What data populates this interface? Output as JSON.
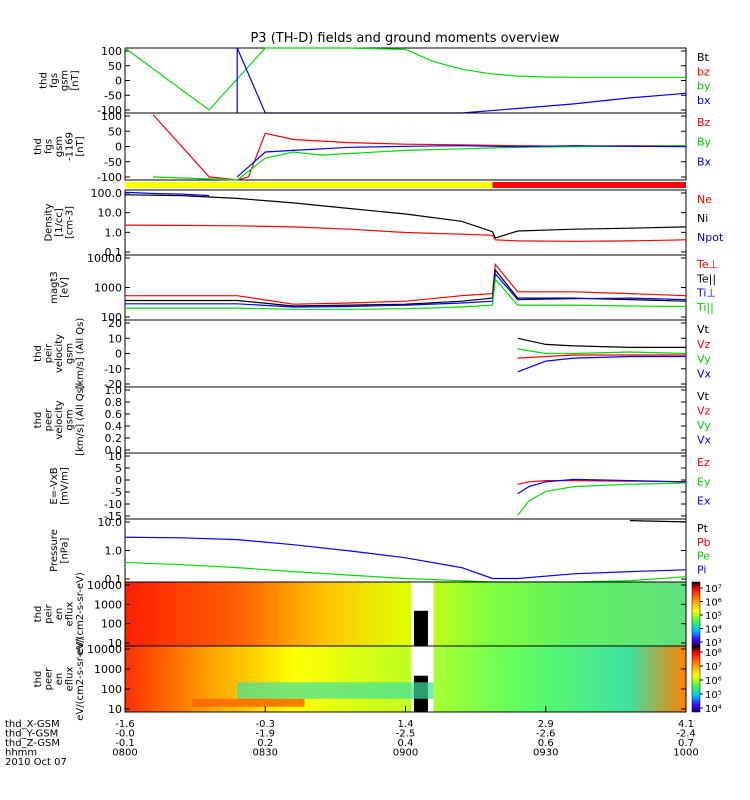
{
  "title": "P3 (TH-D) fields and ground moments overview",
  "colors": {
    "black": "#000000",
    "red": "#ff0000",
    "green": "#00dd00",
    "blue": "#0000ff",
    "yellow": "#ffff00"
  },
  "chart_data": [
    {
      "type": "line",
      "panel": "fgs",
      "ylabel": [
        "thd",
        "fgs",
        "gsm",
        "[nT]"
      ],
      "yticks": [
        "100",
        "50",
        "0",
        "-50",
        "-100"
      ],
      "ylim": [
        -110,
        105
      ],
      "legend": [
        "Bt",
        "bz",
        "by",
        "bx"
      ],
      "series": [
        {
          "name": "by",
          "color": "#00dd00",
          "x": [
            0.0,
            0.15,
            0.25,
            0.4,
            0.5,
            0.55,
            0.6,
            0.65,
            0.7,
            0.75,
            0.8,
            0.9,
            1.0
          ],
          "y": [
            105,
            -100,
            105,
            105,
            100,
            60,
            35,
            20,
            12,
            9,
            8,
            8,
            8
          ]
        },
        {
          "name": "bx",
          "color": "#0000ff",
          "x": [
            0.2,
            0.2,
            0.25,
            0.55,
            0.6,
            0.7,
            0.8,
            0.9,
            1.0
          ],
          "y": [
            -110,
            105,
            -110,
            -120,
            -115,
            -95,
            -80,
            -60,
            -45
          ]
        }
      ]
    },
    {
      "type": "line",
      "panel": "fgs-fac",
      "ylabel": [
        "thd",
        "fgs",
        "gsm",
        "-1169",
        "[nT]"
      ],
      "yticks": [
        "100",
        "50",
        "0",
        "-50",
        "-100"
      ],
      "ylim": [
        -110,
        105
      ],
      "legend": [
        "Bz",
        "By",
        "Bx"
      ],
      "series": [
        {
          "name": "Bz",
          "color": "#ff0000",
          "x": [
            0.05,
            0.15,
            0.2,
            0.22,
            0.25,
            0.3,
            0.4,
            0.5,
            0.6,
            0.7,
            0.8,
            0.9,
            1.0
          ],
          "y": [
            100,
            -100,
            -110,
            -100,
            40,
            20,
            10,
            5,
            3,
            0,
            -2,
            0,
            0
          ]
        },
        {
          "name": "By",
          "color": "#00dd00",
          "x": [
            0.05,
            0.2,
            0.25,
            0.3,
            0.35,
            0.4,
            0.5,
            0.6,
            0.7,
            0.8,
            0.9,
            1.0
          ],
          "y": [
            -100,
            -110,
            -40,
            -20,
            -30,
            -25,
            -15,
            -10,
            -5,
            -3,
            -2,
            0
          ]
        },
        {
          "name": "Bx",
          "color": "#0000ff",
          "x": [
            0.2,
            0.25,
            0.3,
            0.4,
            0.5,
            0.6,
            0.7,
            0.8,
            0.9,
            1.0
          ],
          "y": [
            -100,
            -20,
            -15,
            -5,
            -2,
            0,
            -3,
            0,
            -2,
            -3
          ]
        }
      ]
    },
    {
      "type": "line",
      "panel": "density",
      "ylabel": [
        "Density",
        "[1/cc]",
        "[cm-3]"
      ],
      "yticks": [
        "100.0",
        "10.0",
        "1.0",
        "0.1"
      ],
      "ylim": [
        0.06,
        200
      ],
      "legend": [
        "Ne",
        "Ni",
        "Npot"
      ],
      "series": [
        {
          "name": "Ni",
          "color": "#000000",
          "x": [
            0.0,
            0.1,
            0.2,
            0.3,
            0.4,
            0.5,
            0.6,
            0.655,
            0.66,
            0.7,
            0.8,
            0.9,
            1.0
          ],
          "y": [
            110,
            100,
            70,
            40,
            20,
            10,
            4,
            1.1,
            0.5,
            1.2,
            1.5,
            1.7,
            2.0
          ]
        },
        {
          "name": "Ne",
          "color": "#ff0000",
          "x": [
            0.0,
            0.1,
            0.2,
            0.3,
            0.4,
            0.5,
            0.6,
            0.655,
            0.66,
            0.7,
            0.8,
            0.9,
            1.0
          ],
          "y": [
            2.5,
            2.4,
            2.3,
            2.0,
            1.5,
            1.0,
            0.8,
            0.7,
            0.4,
            0.35,
            0.33,
            0.35,
            0.4
          ]
        },
        {
          "name": "Npot",
          "color": "#0000ff",
          "x": [
            0.0,
            0.05,
            0.1,
            0.15
          ],
          "y": [
            150,
            130,
            120,
            100
          ]
        }
      ]
    },
    {
      "type": "line",
      "panel": "temperature",
      "ylabel": [
        "magt3",
        "[eV]"
      ],
      "yticks": [
        "10000",
        "1000",
        "100"
      ],
      "ylim": [
        100,
        12000
      ],
      "legend": [
        "Te⊥",
        "Te||",
        "Ti⊥",
        "Ti||"
      ],
      "series": [
        {
          "name": "Te⊥",
          "color": "#ff0000",
          "x": [
            0.0,
            0.2,
            0.3,
            0.4,
            0.5,
            0.6,
            0.655,
            0.66,
            0.7,
            0.8,
            0.9,
            1.0
          ],
          "y": [
            600,
            600,
            320,
            350,
            400,
            600,
            700,
            6000,
            800,
            800,
            700,
            600
          ]
        },
        {
          "name": "Te||",
          "color": "#000000",
          "x": [
            0.0,
            0.2,
            0.3,
            0.4,
            0.5,
            0.6,
            0.655,
            0.66,
            0.7,
            0.8,
            0.9,
            1.0
          ],
          "y": [
            420,
            420,
            280,
            300,
            320,
            400,
            500,
            4000,
            500,
            500,
            450,
            400
          ]
        },
        {
          "name": "Ti⊥",
          "color": "#0000ff",
          "x": [
            0.0,
            0.2,
            0.3,
            0.4,
            0.5,
            0.6,
            0.655,
            0.66,
            0.7,
            0.8,
            0.9,
            1.0
          ],
          "y": [
            330,
            330,
            260,
            270,
            300,
            350,
            400,
            3000,
            450,
            480,
            500,
            450
          ]
        },
        {
          "name": "Ti||",
          "color": "#00dd00",
          "x": [
            0.0,
            0.2,
            0.3,
            0.4,
            0.5,
            0.6,
            0.655,
            0.66,
            0.7,
            0.8,
            0.9,
            1.0
          ],
          "y": [
            240,
            240,
            220,
            220,
            230,
            260,
            300,
            2000,
            300,
            300,
            280,
            270
          ]
        }
      ]
    },
    {
      "type": "line",
      "panel": "peir-velocity",
      "ylabel": [
        "thd",
        "peir",
        "velocity",
        "gsm",
        "[km/s] (All Qs)"
      ],
      "yticks": [
        "20",
        "10",
        "0",
        "-10",
        "-20"
      ],
      "ylim": [
        -22,
        22
      ],
      "legend": [
        "Vt",
        "Vz",
        "Vy",
        "Vx"
      ],
      "series": [
        {
          "name": "Vt",
          "color": "#000000",
          "x": [
            0.7,
            0.75,
            0.8,
            0.9,
            1.0
          ],
          "y": [
            10,
            6,
            5,
            4,
            4
          ]
        },
        {
          "name": "Vz",
          "color": "#ff0000",
          "x": [
            0.7,
            0.75,
            0.8,
            0.9,
            1.0
          ],
          "y": [
            -3,
            -2,
            -1,
            -1,
            -1
          ]
        },
        {
          "name": "Vy",
          "color": "#00dd00",
          "x": [
            0.7,
            0.75,
            0.8,
            0.9,
            1.0
          ],
          "y": [
            3,
            0,
            0,
            1,
            0
          ]
        },
        {
          "name": "Vx",
          "color": "#0000ff",
          "x": [
            0.7,
            0.75,
            0.8,
            0.9,
            1.0
          ],
          "y": [
            -12,
            -5,
            -3,
            -2,
            -2
          ]
        }
      ]
    },
    {
      "type": "line",
      "panel": "peer-velocity",
      "ylabel": [
        "thd",
        "peer",
        "velocity",
        "gsm",
        "[km/s] (All Qs)"
      ],
      "yticks": [
        "1.0",
        "0.8",
        "0.6",
        "0.4",
        "0.2",
        "0.0"
      ],
      "ylim": [
        0,
        1
      ],
      "legend": [
        "Vt",
        "Vz",
        "Vy",
        "Vx"
      ],
      "series": []
    },
    {
      "type": "line",
      "panel": "efield",
      "ylabel": [
        "E=-VxB",
        "[mV/m]"
      ],
      "yticks": [
        "10",
        "5",
        "0",
        "-5",
        "-10",
        "-15"
      ],
      "ylim": [
        -15.5,
        12
      ],
      "legend": [
        "Ez",
        "Ey",
        "Ex"
      ],
      "series": [
        {
          "name": "Ez",
          "color": "#ff0000",
          "x": [
            0.7,
            0.72,
            0.75,
            0.8,
            0.9,
            1.0
          ],
          "y": [
            -1,
            0,
            0.5,
            0.5,
            0.3,
            0
          ]
        },
        {
          "name": "Ey",
          "color": "#00dd00",
          "x": [
            0.7,
            0.72,
            0.75,
            0.8,
            0.9,
            1.0
          ],
          "y": [
            -14,
            -8,
            -4,
            -2,
            -1,
            -0.5
          ]
        },
        {
          "name": "Ex",
          "color": "#0000ff",
          "x": [
            0.7,
            0.72,
            0.75,
            0.8,
            0.9,
            1.0
          ],
          "y": [
            -5,
            -2,
            0,
            1,
            0.5,
            0
          ]
        }
      ]
    },
    {
      "type": "line",
      "panel": "pressure",
      "ylabel": [
        "Pressure",
        "[nPa]"
      ],
      "yticks": [
        "10.0",
        "1.0",
        "0.1"
      ],
      "ylim": [
        0.035,
        20
      ],
      "legend": [
        "Pt",
        "Pb",
        "Pe",
        "Pi"
      ],
      "series": [
        {
          "name": "Pt",
          "color": "#000000",
          "x": [
            0.9,
            1.0
          ],
          "y": [
            17,
            15
          ]
        },
        {
          "name": "Pi",
          "color": "#0000ff",
          "x": [
            0.0,
            0.1,
            0.2,
            0.3,
            0.4,
            0.5,
            0.6,
            0.655,
            0.7,
            0.8,
            0.9,
            1.0
          ],
          "y": [
            3.2,
            3.0,
            2.5,
            1.5,
            0.8,
            0.4,
            0.15,
            0.05,
            0.05,
            0.08,
            0.1,
            0.12
          ]
        },
        {
          "name": "Pe",
          "color": "#00dd00",
          "x": [
            0.0,
            0.1,
            0.2,
            0.3,
            0.4,
            0.5,
            0.6,
            0.655,
            0.7,
            0.8,
            0.9,
            1.0
          ],
          "y": [
            0.25,
            0.2,
            0.15,
            0.1,
            0.07,
            0.05,
            0.04,
            0.035,
            0.035,
            0.035,
            0.04,
            0.06
          ]
        }
      ]
    },
    {
      "type": "heatmap",
      "panel": "peir-en-eflux",
      "ylabel": [
        "thd",
        "peir",
        "en",
        "eflux",
        "eV/(cm2-s-sr-eV)"
      ],
      "yticks": [
        "10000",
        "1000",
        "100",
        "10"
      ],
      "colorbar": [
        "10⁷",
        "10⁶",
        "10⁵",
        "10⁴",
        "10³"
      ]
    },
    {
      "type": "heatmap",
      "panel": "peer-en-eflux",
      "ylabel": [
        "thd",
        "peer",
        "en",
        "eflux",
        "eV/(cm2-s-sr-eV)"
      ],
      "yticks": [
        "10000",
        "1000",
        "100",
        "10"
      ],
      "colorbar": [
        "10⁸",
        "10⁷",
        "10⁶",
        "10⁵",
        "10⁴"
      ]
    }
  ],
  "xaxis": {
    "rows": [
      {
        "label": "thd_X-GSM",
        "values": [
          "-1.6",
          "-0.3",
          "1.4",
          "2.9",
          "4.1"
        ]
      },
      {
        "label": "thd_Y-GSM",
        "values": [
          "-0.0",
          "-1.9",
          "-2.5",
          "-2.6",
          "-2.4"
        ]
      },
      {
        "label": "thd_Z-GSM",
        "values": [
          "-0.1",
          "0.2",
          "0.4",
          "0.6",
          "0.7"
        ]
      },
      {
        "label": "hhmm",
        "values": [
          "0800",
          "0830",
          "0900",
          "0930",
          "1000"
        ]
      }
    ],
    "date": "2010 Oct 07"
  }
}
